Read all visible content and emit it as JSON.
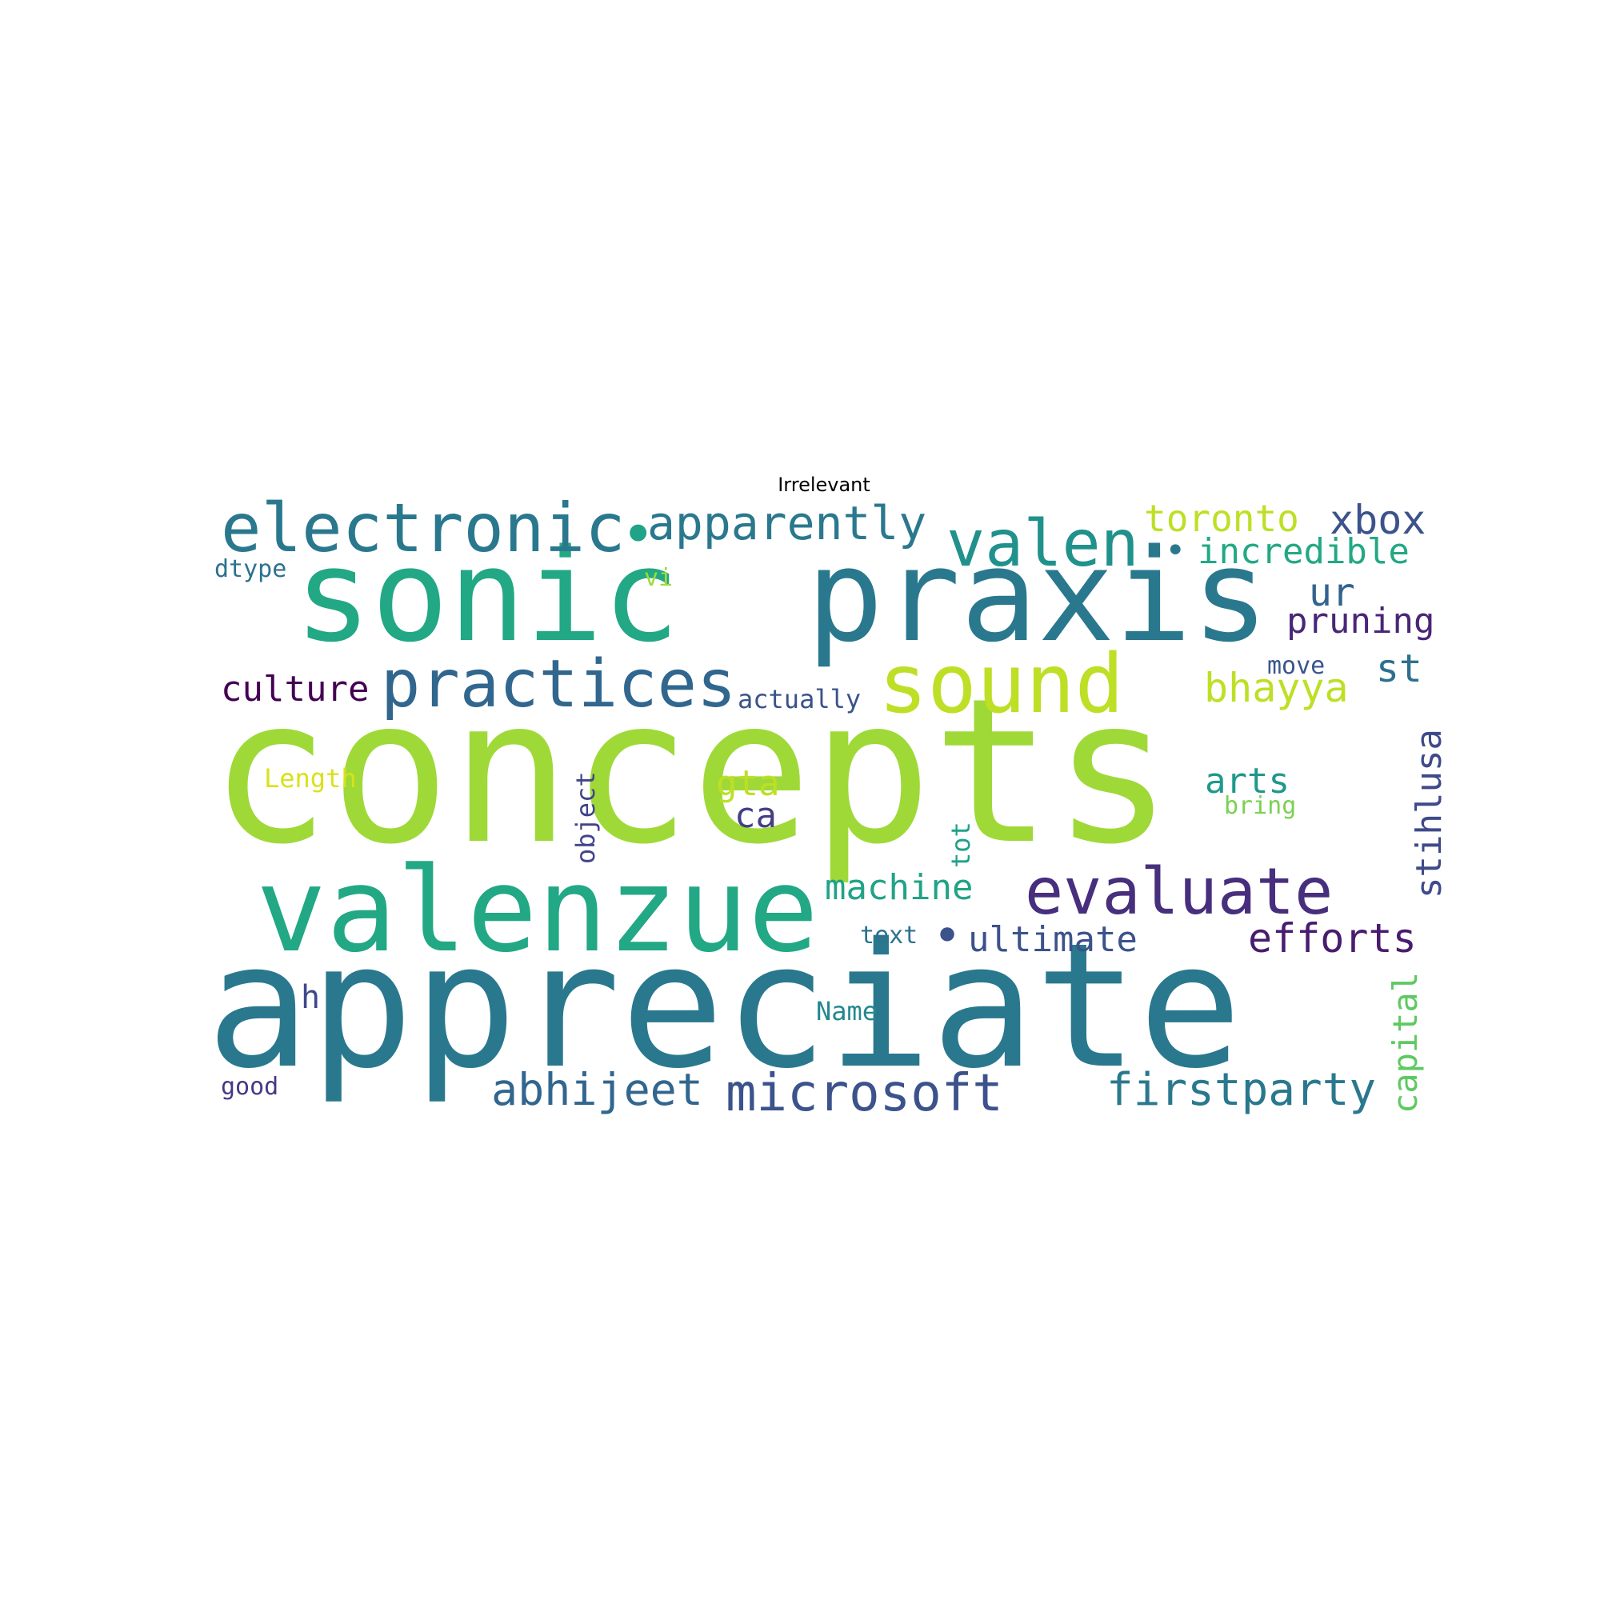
{
  "title": "Irrelevant",
  "words": [
    {
      "text": "concepts",
      "color": "#9fd938"
    },
    {
      "text": "appreciate",
      "color": "#2a788e"
    },
    {
      "text": "sonic",
      "color": "#22a884"
    },
    {
      "text": "praxis",
      "color": "#2a788e"
    },
    {
      "text": "valenzue",
      "color": "#22a884"
    },
    {
      "text": "sound",
      "color": "#bddf26"
    },
    {
      "text": "electronic",
      "color": "#2a788e"
    },
    {
      "text": "practices",
      "color": "#31668e"
    },
    {
      "text": "valen",
      "color": "#21918c"
    },
    {
      "text": "evaluate",
      "color": "#472f7d"
    },
    {
      "text": "microsoft",
      "color": "#3b528b"
    },
    {
      "text": "apparently",
      "color": "#2a788e"
    },
    {
      "text": "firstparty",
      "color": "#2a788e"
    },
    {
      "text": "abhijeet",
      "color": "#31668e"
    },
    {
      "text": "efforts",
      "color": "#481c6e"
    },
    {
      "text": "toronto",
      "color": "#bddf26"
    },
    {
      "text": "xbox",
      "color": "#3b528b"
    },
    {
      "text": "incredible",
      "color": "#22a884"
    },
    {
      "text": "bhayya",
      "color": "#bddf26"
    },
    {
      "text": "pruning",
      "color": "#482677"
    },
    {
      "text": "stihlusa",
      "color": "#3e4a89"
    },
    {
      "text": "capital",
      "color": "#5ec962"
    },
    {
      "text": "machine",
      "color": "#20a386"
    },
    {
      "text": "ultimate",
      "color": "#3b528b"
    },
    {
      "text": "culture",
      "color": "#440154"
    },
    {
      "text": "ur",
      "color": "#33638d"
    },
    {
      "text": "st",
      "color": "#2d708e"
    },
    {
      "text": "arts",
      "color": "#1f988b"
    },
    {
      "text": "gta",
      "color": "#bddf26"
    },
    {
      "text": "ca",
      "color": "#433e85"
    },
    {
      "text": "object",
      "color": "#414487"
    },
    {
      "text": "actually",
      "color": "#3b528b"
    },
    {
      "text": "Length",
      "color": "#d8e219"
    },
    {
      "text": "dtype",
      "color": "#2c728e"
    },
    {
      "text": "vi",
      "color": "#a0da39"
    },
    {
      "text": "move",
      "color": "#39568c"
    },
    {
      "text": "bring",
      "color": "#7ad151"
    },
    {
      "text": "tot",
      "color": "#1fa187"
    },
    {
      "text": "text",
      "color": "#2c728e"
    },
    {
      "text": "Name",
      "color": "#23888e"
    },
    {
      "text": "good",
      "color": "#443983"
    },
    {
      "text": "h",
      "color": "#3e4989"
    },
    {
      "text": "•",
      "color": "#20a386"
    },
    {
      "text": "•",
      "color": "#2a788e"
    },
    {
      "text": "•",
      "color": "#3b528b"
    }
  ]
}
